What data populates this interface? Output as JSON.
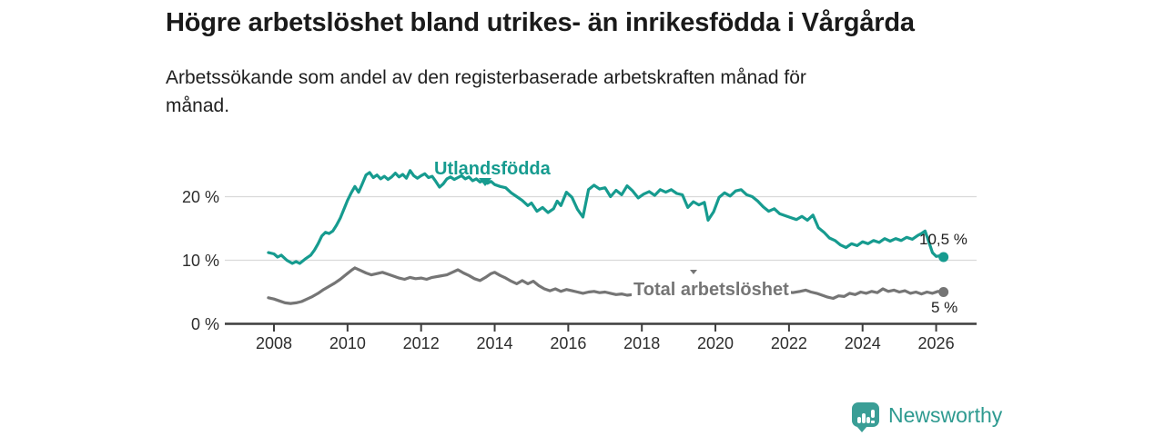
{
  "header": {
    "title": "Högre arbetslöshet bland utrikes- än inrikesfödda i Vårgårda",
    "subtitle": "Arbetssökande som andel av den registerbaserade arbetskraften månad för\nmånad."
  },
  "footer": {
    "brand": "Newsworthy",
    "brand_color": "#2e9a90",
    "logo_color": "#3a9e96"
  },
  "chart_data": {
    "type": "line",
    "unit": "%",
    "grid": "horizontal",
    "axis_color": "#3d3d3d",
    "grid_color": "#d9d9d9",
    "tick_label_color": "#2d2d2d",
    "x_ticks": [
      2008,
      2010,
      2012,
      2014,
      2016,
      2018,
      2020,
      2022,
      2024,
      2026
    ],
    "y_ticks": [
      0,
      10,
      20
    ],
    "y_tick_suffix": " %",
    "ylim": [
      0,
      25
    ],
    "xlim": [
      2007.8,
      2027.1
    ],
    "series": [
      {
        "name": "Utlandsfödda",
        "color": "#169b8f",
        "end_label": "10,5 %",
        "end_value": 10.5,
        "points": [
          [
            2007.85,
            11.2
          ],
          [
            2008.0,
            11.0
          ],
          [
            2008.1,
            10.5
          ],
          [
            2008.2,
            10.8
          ],
          [
            2008.35,
            10.0
          ],
          [
            2008.5,
            9.5
          ],
          [
            2008.6,
            9.8
          ],
          [
            2008.7,
            9.5
          ],
          [
            2008.85,
            10.2
          ],
          [
            2009.0,
            10.8
          ],
          [
            2009.1,
            11.6
          ],
          [
            2009.2,
            12.6
          ],
          [
            2009.3,
            13.8
          ],
          [
            2009.4,
            14.4
          ],
          [
            2009.5,
            14.2
          ],
          [
            2009.6,
            14.6
          ],
          [
            2009.7,
            15.5
          ],
          [
            2009.8,
            16.6
          ],
          [
            2009.9,
            18.0
          ],
          [
            2010.0,
            19.4
          ],
          [
            2010.1,
            20.6
          ],
          [
            2010.2,
            21.6
          ],
          [
            2010.3,
            20.7
          ],
          [
            2010.4,
            22.0
          ],
          [
            2010.5,
            23.4
          ],
          [
            2010.6,
            23.8
          ],
          [
            2010.7,
            23.0
          ],
          [
            2010.8,
            23.4
          ],
          [
            2010.9,
            22.8
          ],
          [
            2011.0,
            23.2
          ],
          [
            2011.1,
            22.7
          ],
          [
            2011.2,
            23.1
          ],
          [
            2011.3,
            23.7
          ],
          [
            2011.4,
            23.1
          ],
          [
            2011.5,
            23.5
          ],
          [
            2011.6,
            22.9
          ],
          [
            2011.7,
            24.1
          ],
          [
            2011.8,
            23.3
          ],
          [
            2011.9,
            22.9
          ],
          [
            2012.0,
            23.3
          ],
          [
            2012.1,
            23.6
          ],
          [
            2012.2,
            23.0
          ],
          [
            2012.3,
            23.2
          ],
          [
            2012.4,
            22.4
          ],
          [
            2012.5,
            21.5
          ],
          [
            2012.6,
            22.0
          ],
          [
            2012.7,
            22.8
          ],
          [
            2012.8,
            23.1
          ],
          [
            2012.9,
            22.7
          ],
          [
            2013.0,
            23.0
          ],
          [
            2013.1,
            23.3
          ],
          [
            2013.2,
            22.8
          ],
          [
            2013.3,
            23.1
          ],
          [
            2013.4,
            22.5
          ],
          [
            2013.5,
            22.8
          ],
          [
            2013.6,
            22.3
          ],
          [
            2013.7,
            22.6
          ],
          [
            2013.8,
            22.1
          ],
          [
            2013.9,
            22.4
          ],
          [
            2014.0,
            21.9
          ],
          [
            2014.15,
            21.6
          ],
          [
            2014.3,
            21.4
          ],
          [
            2014.45,
            20.6
          ],
          [
            2014.6,
            20.0
          ],
          [
            2014.75,
            19.4
          ],
          [
            2014.9,
            18.6
          ],
          [
            2015.0,
            19.0
          ],
          [
            2015.15,
            17.7
          ],
          [
            2015.3,
            18.3
          ],
          [
            2015.45,
            17.5
          ],
          [
            2015.6,
            18.1
          ],
          [
            2015.7,
            19.3
          ],
          [
            2015.8,
            18.6
          ],
          [
            2015.95,
            20.7
          ],
          [
            2016.1,
            19.9
          ],
          [
            2016.25,
            18.0
          ],
          [
            2016.4,
            16.8
          ],
          [
            2016.55,
            21.1
          ],
          [
            2016.7,
            21.8
          ],
          [
            2016.85,
            21.2
          ],
          [
            2017.0,
            21.4
          ],
          [
            2017.15,
            20.0
          ],
          [
            2017.3,
            21.0
          ],
          [
            2017.45,
            20.3
          ],
          [
            2017.6,
            21.7
          ],
          [
            2017.75,
            20.9
          ],
          [
            2017.9,
            19.8
          ],
          [
            2018.05,
            20.4
          ],
          [
            2018.2,
            20.8
          ],
          [
            2018.35,
            20.2
          ],
          [
            2018.5,
            21.1
          ],
          [
            2018.65,
            20.7
          ],
          [
            2018.8,
            21.1
          ],
          [
            2018.95,
            20.5
          ],
          [
            2019.1,
            20.3
          ],
          [
            2019.25,
            18.3
          ],
          [
            2019.4,
            19.2
          ],
          [
            2019.55,
            18.7
          ],
          [
            2019.7,
            19.1
          ],
          [
            2019.8,
            16.3
          ],
          [
            2019.95,
            17.6
          ],
          [
            2020.1,
            19.9
          ],
          [
            2020.25,
            20.6
          ],
          [
            2020.4,
            20.1
          ],
          [
            2020.55,
            20.9
          ],
          [
            2020.7,
            21.1
          ],
          [
            2020.85,
            20.3
          ],
          [
            2021.0,
            20.0
          ],
          [
            2021.15,
            19.3
          ],
          [
            2021.3,
            18.4
          ],
          [
            2021.45,
            17.7
          ],
          [
            2021.6,
            18.1
          ],
          [
            2021.75,
            17.3
          ],
          [
            2021.9,
            17.0
          ],
          [
            2022.05,
            16.7
          ],
          [
            2022.2,
            16.4
          ],
          [
            2022.35,
            16.9
          ],
          [
            2022.5,
            16.3
          ],
          [
            2022.65,
            17.1
          ],
          [
            2022.8,
            15.1
          ],
          [
            2022.95,
            14.4
          ],
          [
            2023.1,
            13.5
          ],
          [
            2023.25,
            13.1
          ],
          [
            2023.4,
            12.4
          ],
          [
            2023.55,
            12.0
          ],
          [
            2023.7,
            12.6
          ],
          [
            2023.85,
            12.3
          ],
          [
            2024.0,
            12.9
          ],
          [
            2024.15,
            12.6
          ],
          [
            2024.3,
            13.1
          ],
          [
            2024.45,
            12.8
          ],
          [
            2024.6,
            13.4
          ],
          [
            2024.75,
            13.0
          ],
          [
            2024.9,
            13.4
          ],
          [
            2025.05,
            13.1
          ],
          [
            2025.2,
            13.6
          ],
          [
            2025.35,
            13.3
          ],
          [
            2025.5,
            13.9
          ],
          [
            2025.6,
            14.2
          ],
          [
            2025.7,
            14.6
          ],
          [
            2025.8,
            12.9
          ],
          [
            2025.9,
            11.2
          ],
          [
            2026.0,
            10.6
          ],
          [
            2026.1,
            10.7
          ],
          [
            2026.2,
            10.5
          ]
        ]
      },
      {
        "name": "Total arbetslöshet",
        "color": "#757575",
        "end_label": "5 %",
        "end_value": 5.0,
        "points": [
          [
            2007.85,
            4.1
          ],
          [
            2008.0,
            3.9
          ],
          [
            2008.15,
            3.6
          ],
          [
            2008.3,
            3.3
          ],
          [
            2008.45,
            3.2
          ],
          [
            2008.6,
            3.3
          ],
          [
            2008.75,
            3.5
          ],
          [
            2008.9,
            3.9
          ],
          [
            2009.05,
            4.3
          ],
          [
            2009.2,
            4.8
          ],
          [
            2009.35,
            5.4
          ],
          [
            2009.5,
            5.9
          ],
          [
            2009.65,
            6.4
          ],
          [
            2009.8,
            7.0
          ],
          [
            2009.95,
            7.7
          ],
          [
            2010.1,
            8.4
          ],
          [
            2010.2,
            8.8
          ],
          [
            2010.35,
            8.4
          ],
          [
            2010.5,
            8.0
          ],
          [
            2010.65,
            7.7
          ],
          [
            2010.8,
            7.9
          ],
          [
            2010.95,
            8.1
          ],
          [
            2011.1,
            7.8
          ],
          [
            2011.25,
            7.5
          ],
          [
            2011.4,
            7.2
          ],
          [
            2011.55,
            7.0
          ],
          [
            2011.7,
            7.3
          ],
          [
            2011.85,
            7.1
          ],
          [
            2012.0,
            7.2
          ],
          [
            2012.15,
            7.0
          ],
          [
            2012.3,
            7.3
          ],
          [
            2012.5,
            7.5
          ],
          [
            2012.7,
            7.7
          ],
          [
            2012.85,
            8.1
          ],
          [
            2013.0,
            8.5
          ],
          [
            2013.15,
            8.0
          ],
          [
            2013.3,
            7.6
          ],
          [
            2013.45,
            7.1
          ],
          [
            2013.6,
            6.8
          ],
          [
            2013.75,
            7.3
          ],
          [
            2013.9,
            7.9
          ],
          [
            2014.0,
            8.1
          ],
          [
            2014.15,
            7.6
          ],
          [
            2014.3,
            7.2
          ],
          [
            2014.45,
            6.7
          ],
          [
            2014.6,
            6.3
          ],
          [
            2014.75,
            6.8
          ],
          [
            2014.9,
            6.3
          ],
          [
            2015.05,
            6.7
          ],
          [
            2015.2,
            6.0
          ],
          [
            2015.35,
            5.5
          ],
          [
            2015.5,
            5.2
          ],
          [
            2015.65,
            5.5
          ],
          [
            2015.8,
            5.1
          ],
          [
            2015.95,
            5.4
          ],
          [
            2016.1,
            5.2
          ],
          [
            2016.25,
            5.0
          ],
          [
            2016.4,
            4.8
          ],
          [
            2016.55,
            5.0
          ],
          [
            2016.7,
            5.1
          ],
          [
            2016.85,
            4.9
          ],
          [
            2017.0,
            5.0
          ],
          [
            2017.15,
            4.8
          ],
          [
            2017.3,
            4.6
          ],
          [
            2017.45,
            4.7
          ],
          [
            2017.6,
            4.5
          ],
          [
            2017.75,
            4.6
          ],
          [
            2017.9,
            4.7
          ],
          [
            2018.1,
            4.9
          ],
          [
            2018.3,
            4.8
          ],
          [
            2018.5,
            5.0
          ],
          [
            2018.7,
            4.9
          ],
          [
            2018.9,
            5.1
          ],
          [
            2019.1,
            5.0
          ],
          [
            2019.3,
            5.2
          ],
          [
            2019.5,
            5.1
          ],
          [
            2019.7,
            5.0
          ],
          [
            2019.9,
            5.1
          ],
          [
            2020.1,
            5.3
          ],
          [
            2020.3,
            5.6
          ],
          [
            2020.5,
            5.7
          ],
          [
            2020.7,
            5.5
          ],
          [
            2020.9,
            5.4
          ],
          [
            2021.1,
            5.5
          ],
          [
            2021.3,
            5.3
          ],
          [
            2021.5,
            5.1
          ],
          [
            2021.7,
            5.0
          ],
          [
            2021.9,
            5.1
          ],
          [
            2022.1,
            4.9
          ],
          [
            2022.3,
            5.1
          ],
          [
            2022.45,
            5.3
          ],
          [
            2022.6,
            5.0
          ],
          [
            2022.75,
            4.8
          ],
          [
            2022.9,
            4.5
          ],
          [
            2023.05,
            4.2
          ],
          [
            2023.2,
            4.0
          ],
          [
            2023.35,
            4.4
          ],
          [
            2023.5,
            4.3
          ],
          [
            2023.65,
            4.8
          ],
          [
            2023.8,
            4.6
          ],
          [
            2023.95,
            5.0
          ],
          [
            2024.1,
            4.8
          ],
          [
            2024.25,
            5.1
          ],
          [
            2024.4,
            4.9
          ],
          [
            2024.55,
            5.5
          ],
          [
            2024.7,
            5.1
          ],
          [
            2024.85,
            5.3
          ],
          [
            2025.0,
            5.0
          ],
          [
            2025.15,
            5.2
          ],
          [
            2025.3,
            4.8
          ],
          [
            2025.45,
            5.0
          ],
          [
            2025.6,
            4.7
          ],
          [
            2025.75,
            5.0
          ],
          [
            2025.9,
            4.8
          ],
          [
            2026.05,
            5.1
          ],
          [
            2026.2,
            5.0
          ]
        ]
      }
    ]
  }
}
